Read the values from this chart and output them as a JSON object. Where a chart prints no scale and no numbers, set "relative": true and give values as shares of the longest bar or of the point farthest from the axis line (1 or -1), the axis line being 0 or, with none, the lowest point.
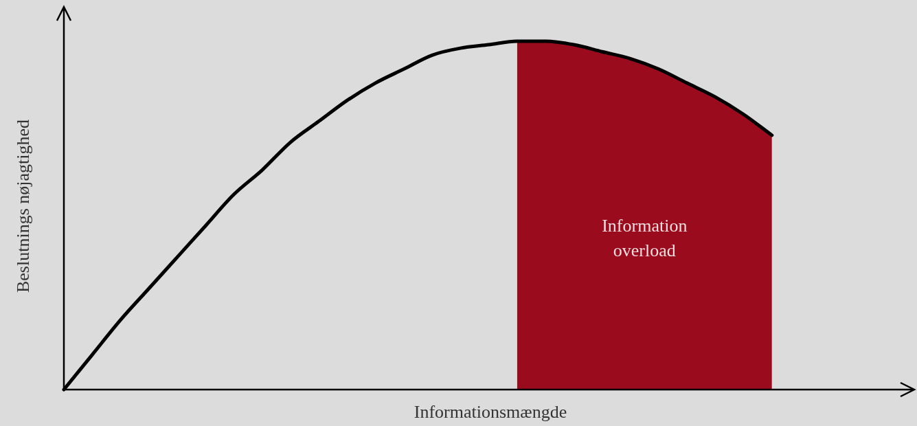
{
  "chart_data": {
    "type": "line",
    "relative": true,
    "xlabel": "Informationsmængde",
    "ylabel": "Beslutnings nøjagtighed",
    "marker": "none",
    "categories": [
      null,
      null,
      null,
      null,
      null,
      null,
      null,
      null,
      null,
      null,
      null,
      null,
      null,
      null,
      null,
      null,
      null,
      null,
      null,
      null,
      null,
      null,
      null,
      null,
      null,
      null,
      null,
      null,
      null,
      null,
      null
    ],
    "series": [
      {
        "type": "line",
        "color": "#000000",
        "values": [
          0,
          0.1,
          0.2,
          0.29,
          0.38,
          0.47,
          0.56,
          0.63,
          0.71,
          0.77,
          0.83,
          0.88,
          0.92,
          0.96,
          0.98,
          0.99,
          1,
          1,
          0.99,
          0.97,
          0.95,
          0.92,
          0.88,
          0.84,
          0.79,
          0.73,
          null,
          null,
          null,
          null,
          null
        ]
      },
      {
        "type": "area",
        "color": "#9b0b1e",
        "values": [
          null,
          null,
          null,
          null,
          null,
          null,
          null,
          null,
          null,
          null,
          null,
          null,
          null,
          null,
          null,
          null,
          1,
          1,
          0.99,
          0.97,
          0.95,
          0.92,
          0.88,
          0.84,
          0.79,
          0.73,
          null,
          null,
          null,
          null,
          null
        ]
      }
    ],
    "annotations": [
      "Information overload"
    ]
  }
}
